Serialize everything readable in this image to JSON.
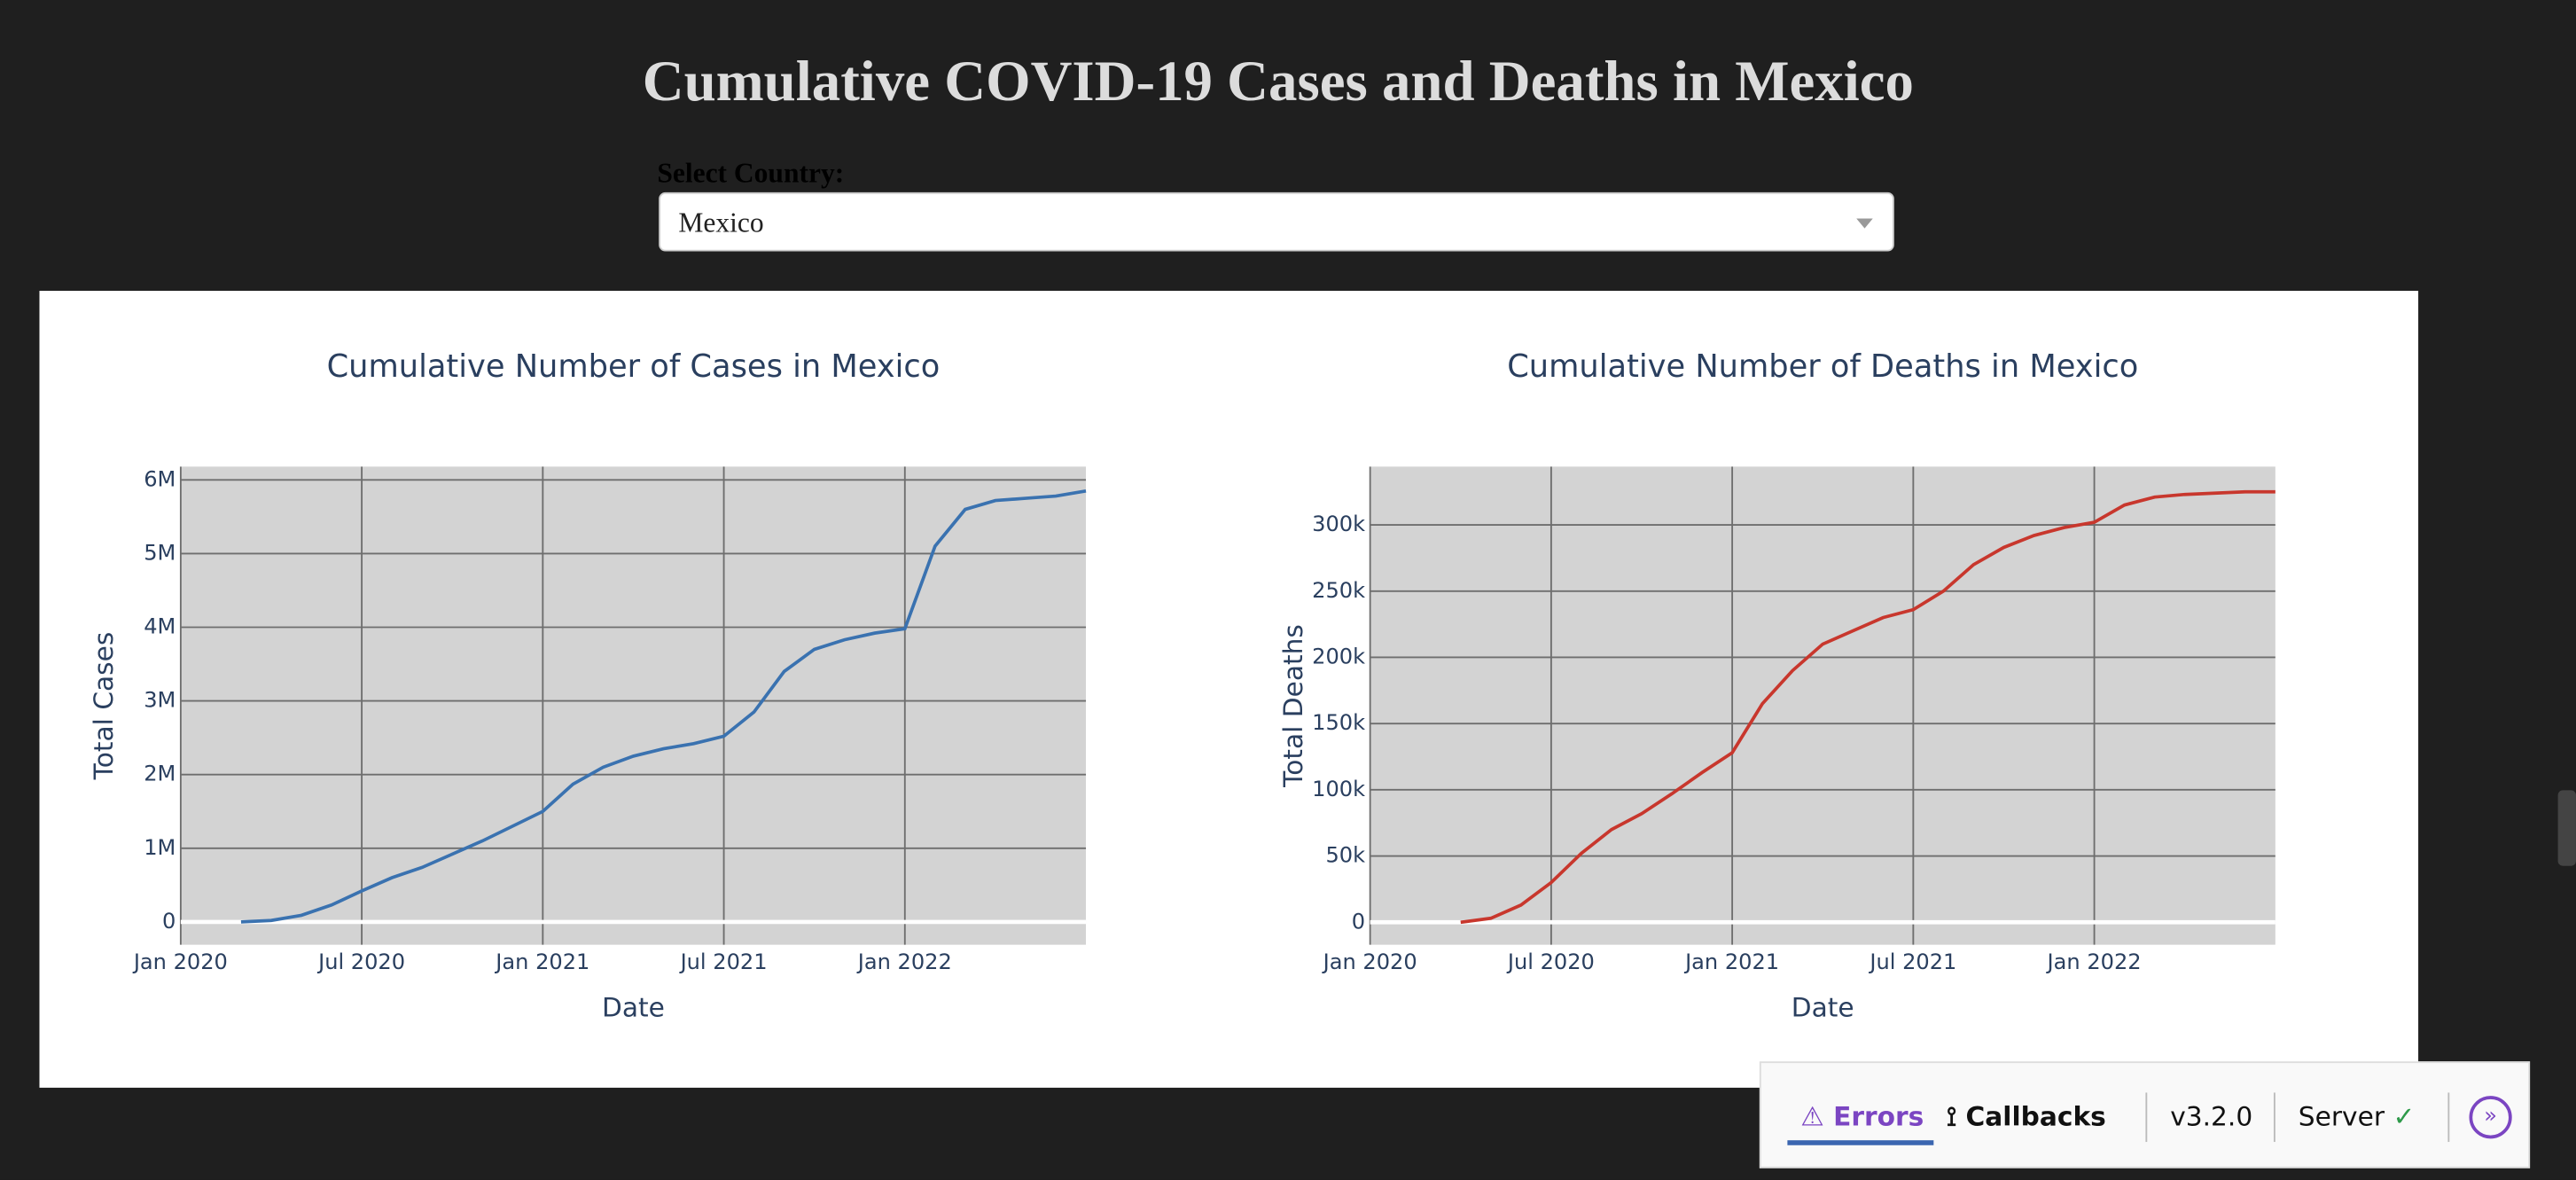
{
  "page": {
    "title": "Cumulative COVID-19 Cases and Deaths in Mexico",
    "dropdown_label": "Select Country:",
    "dropdown_value": "Mexico"
  },
  "chart_data": [
    {
      "type": "line",
      "title": "Cumulative Number of Cases in Mexico",
      "x_label": "Date",
      "y_label": "Total Cases",
      "color": "#3a72b0",
      "grid": true,
      "x": [
        "2020-03",
        "2020-04",
        "2020-05",
        "2020-06",
        "2020-07",
        "2020-08",
        "2020-09",
        "2020-10",
        "2020-11",
        "2020-12",
        "2021-01",
        "2021-02",
        "2021-03",
        "2021-04",
        "2021-05",
        "2021-06",
        "2021-07",
        "2021-08",
        "2021-09",
        "2021-10",
        "2021-11",
        "2021-12",
        "2022-01",
        "2022-02",
        "2022-03",
        "2022-04",
        "2022-05",
        "2022-06",
        "2022-07"
      ],
      "values": [
        0,
        20000,
        90000,
        230000,
        420000,
        600000,
        740000,
        920000,
        1100000,
        1300000,
        1500000,
        1870000,
        2100000,
        2250000,
        2350000,
        2420000,
        2520000,
        2850000,
        3400000,
        3700000,
        3830000,
        3920000,
        3980000,
        5100000,
        5600000,
        5720000,
        5750000,
        5780000,
        5850000
      ],
      "xlim": [
        "2020-01",
        "2022-07"
      ],
      "xticks": [
        {
          "value": "2020-01",
          "label": "Jan 2020"
        },
        {
          "value": "2020-07",
          "label": "Jul 2020"
        },
        {
          "value": "2021-01",
          "label": "Jan 2021"
        },
        {
          "value": "2021-07",
          "label": "Jul 2021"
        },
        {
          "value": "2022-01",
          "label": "Jan 2022"
        }
      ],
      "ylim": [
        -310000,
        6180000
      ],
      "yticks": [
        0,
        {
          "value": 1000000,
          "label": "1M"
        },
        {
          "value": 2000000,
          "label": "2M"
        },
        {
          "value": 3000000,
          "label": "3M"
        },
        {
          "value": 4000000,
          "label": "4M"
        },
        {
          "value": 5000000,
          "label": "5M"
        },
        {
          "value": 6000000,
          "label": "6M"
        }
      ]
    },
    {
      "type": "line",
      "title": "Cumulative Number of Deaths in Mexico",
      "x_label": "Date",
      "y_label": "Total Deaths",
      "color": "#c8372d",
      "grid": true,
      "x": [
        "2020-04",
        "2020-05",
        "2020-06",
        "2020-07",
        "2020-08",
        "2020-09",
        "2020-10",
        "2020-11",
        "2020-12",
        "2021-01",
        "2021-02",
        "2021-03",
        "2021-04",
        "2021-05",
        "2021-06",
        "2021-07",
        "2021-08",
        "2021-09",
        "2021-10",
        "2021-11",
        "2021-12",
        "2022-01",
        "2022-02",
        "2022-03",
        "2022-04",
        "2022-05",
        "2022-06",
        "2022-07"
      ],
      "values": [
        0,
        3000,
        13000,
        30000,
        52000,
        70000,
        82000,
        97000,
        113000,
        128000,
        165000,
        190000,
        210000,
        220000,
        230000,
        236000,
        250000,
        270000,
        283000,
        292000,
        298000,
        302000,
        315000,
        321000,
        323000,
        324000,
        325000,
        325000
      ],
      "xlim": [
        "2020-01",
        "2022-07"
      ],
      "xticks": [
        {
          "value": "2020-01",
          "label": "Jan 2020"
        },
        {
          "value": "2020-07",
          "label": "Jul 2020"
        },
        {
          "value": "2021-01",
          "label": "Jan 2021"
        },
        {
          "value": "2021-07",
          "label": "Jul 2021"
        },
        {
          "value": "2022-01",
          "label": "Jan 2022"
        }
      ],
      "ylim": [
        -17000,
        344000
      ],
      "yticks": [
        0,
        {
          "value": 50000,
          "label": "50k"
        },
        {
          "value": 100000,
          "label": "100k"
        },
        {
          "value": 150000,
          "label": "150k"
        },
        {
          "value": 200000,
          "label": "200k"
        },
        {
          "value": 250000,
          "label": "250k"
        },
        {
          "value": 300000,
          "label": "300k"
        }
      ]
    }
  ],
  "devtools": {
    "errors": "Errors",
    "callbacks": "Callbacks",
    "version": "v3.2.0",
    "server": "Server"
  }
}
